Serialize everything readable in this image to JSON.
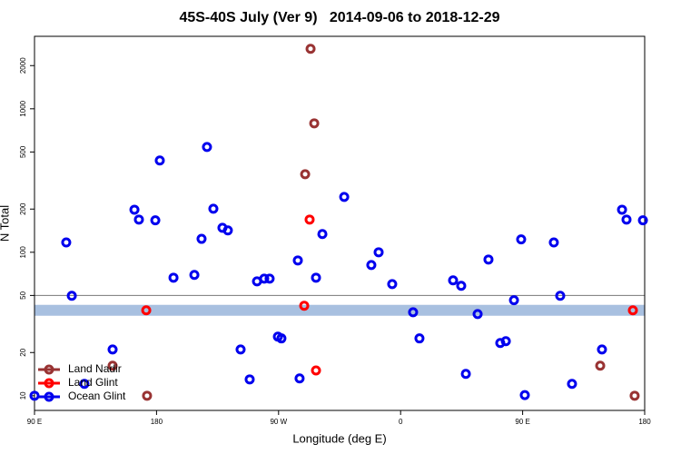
{
  "chart_data": {
    "type": "scatter",
    "title": "45S-40S July (Ver 9)   2014-09-06 to 2018-12-29",
    "xlabel": "Longitude (deg E)",
    "ylabel": "N Total",
    "xlim": [
      90,
      540
    ],
    "xticks": [
      {
        "value": 90,
        "label": "90 E"
      },
      {
        "value": 180,
        "label": "180"
      },
      {
        "value": 270,
        "label": "90 W"
      },
      {
        "value": 360,
        "label": "0"
      },
      {
        "value": 450,
        "label": "90 E"
      },
      {
        "value": 540,
        "label": "180"
      }
    ],
    "ylim": [
      7.9,
      3200
    ],
    "yscale": "log",
    "yticks": [
      10,
      20,
      50,
      100,
      200,
      500,
      1000,
      2000
    ],
    "hline": 50,
    "band": 39.4,
    "legend": "lower left",
    "series": [
      {
        "name": "Land Nadir",
        "color": "#993333",
        "x": [
          293.6,
          296.3,
          289.6,
          147.6,
          173.0,
          507.2,
          532.6
        ],
        "values": [
          2618,
          792,
          350,
          16.2,
          10,
          16.2,
          10
        ]
      },
      {
        "name": "Land Glint",
        "color": "#ff0000",
        "x": [
          292.9,
          288.9,
          172.4,
          297.6,
          531.3
        ],
        "values": [
          169,
          42.4,
          39.4,
          15.0,
          39.4
        ]
      },
      {
        "name": "Ocean Glint",
        "color": "#0000ee",
        "x": [
          90,
          113.4,
          117.5,
          126.8,
          147.6,
          163.7,
          167.0,
          179.1,
          182.4,
          192.5,
          207.9,
          213.2,
          217.2,
          221.9,
          228.6,
          232.6,
          242.0,
          248.7,
          254.1,
          259.4,
          263.4,
          269.5,
          272.1,
          284.2,
          285.5,
          297.6,
          302.3,
          318.4,
          338.4,
          343.8,
          353.8,
          369.2,
          373.9,
          398.7,
          404.7,
          408.1,
          416.8,
          424.8,
          433.5,
          437.6,
          443.6,
          448.9,
          451.6,
          473.0,
          477.7,
          486.4,
          508.5,
          523.3,
          526.6,
          538.7
        ],
        "values": [
          10,
          117,
          49.7,
          12.1,
          21.0,
          198,
          169,
          167,
          436,
          66.5,
          69.5,
          124,
          542,
          201,
          148,
          142,
          21.0,
          13.0,
          62.7,
          65.5,
          65.5,
          25.8,
          25.1,
          87.7,
          13.2,
          66.5,
          134,
          243,
          81.5,
          100,
          60.0,
          38.2,
          25.1,
          63.7,
          58.4,
          14.2,
          37.1,
          89,
          23.3,
          24.0,
          46.3,
          123,
          10.1,
          117,
          49.7,
          12.1,
          21.0,
          198,
          169,
          167
        ]
      }
    ]
  }
}
